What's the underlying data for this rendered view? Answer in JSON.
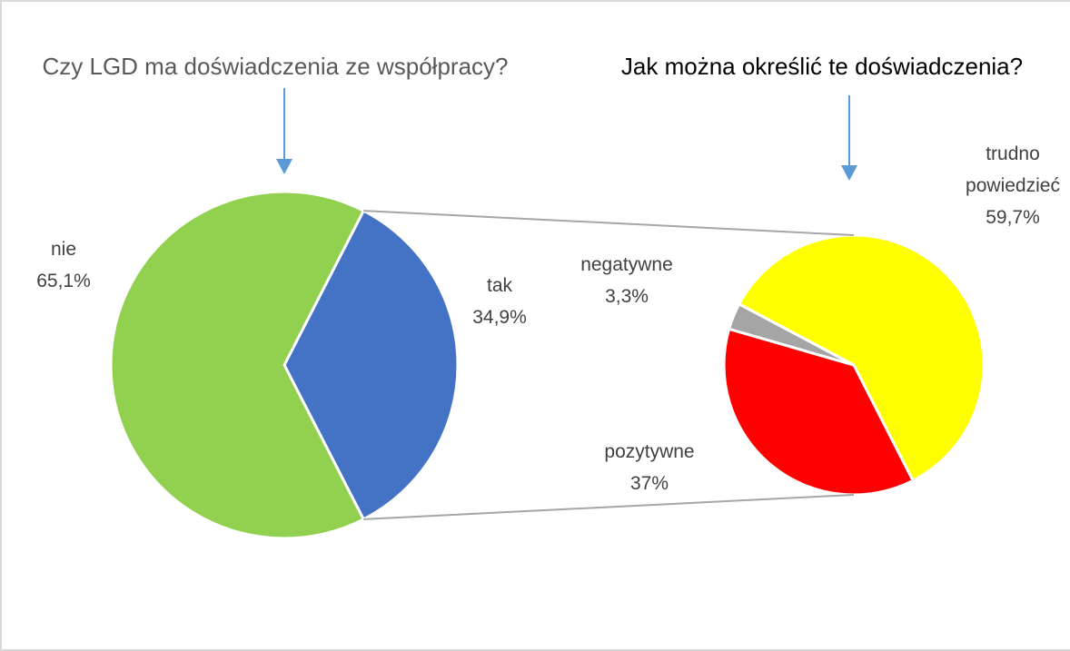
{
  "chart_data": [
    {
      "type": "pie",
      "title": "Czy LGD ma doświadczenia ze współpracy?",
      "categories": [
        "tak",
        "nie"
      ],
      "values": [
        34.9,
        65.1
      ],
      "value_labels": [
        "34,9%",
        "65,1%"
      ],
      "colors": [
        "#4472c4",
        "#92d050"
      ]
    },
    {
      "type": "pie",
      "title": "Jak można określić te doświadczenia?",
      "categories": [
        "trudno powiedzieć",
        "pozytywne",
        "negatywne"
      ],
      "values": [
        59.7,
        37,
        3.3
      ],
      "value_labels": [
        "59,7%",
        "37%",
        "3,3%"
      ],
      "colors": [
        "#ffff00",
        "#ff0000",
        "#a5a5a5"
      ]
    }
  ]
}
